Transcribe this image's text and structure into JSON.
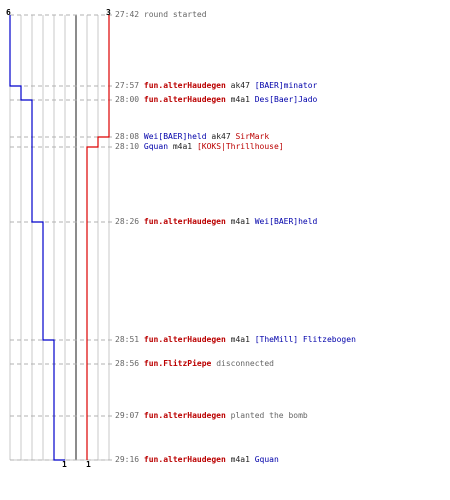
{
  "colors": {
    "blue_team": "#0000cc",
    "red_team": "#dd0000",
    "grid": "#c8c8c8",
    "dash": "#b0b0b0",
    "gray_line": "#666666"
  },
  "counters": {
    "blue_start": "6",
    "red_start": "3",
    "blue_end": "1",
    "red_end": "1"
  },
  "events": [
    {
      "time": "27:42",
      "parts": [
        {
          "text": "round started",
          "cls": "msg"
        }
      ]
    },
    {
      "time": "27:57",
      "parts": [
        {
          "text": "fun.alterHaudegen",
          "cls": "ct"
        },
        {
          "text": "ak47",
          "cls": "wp"
        },
        {
          "text": "[BAER]minator",
          "cls": "tt-name"
        }
      ]
    },
    {
      "time": "28:00",
      "parts": [
        {
          "text": "fun.alterHaudegen",
          "cls": "ct"
        },
        {
          "text": "m4a1",
          "cls": "wp"
        },
        {
          "text": "Des[Baer]Jado",
          "cls": "tt-name"
        }
      ]
    },
    {
      "time": "28:08",
      "parts": [
        {
          "text": "Wei[BAER]held",
          "cls": "tt-name"
        },
        {
          "text": "ak47",
          "cls": "wp"
        },
        {
          "text": "SirMark",
          "cls": "ct-name"
        }
      ]
    },
    {
      "time": "28:10",
      "parts": [
        {
          "text": "Gquan",
          "cls": "tt-name"
        },
        {
          "text": "m4a1",
          "cls": "wp"
        },
        {
          "text": "[KOKS|Thrillhouse]",
          "cls": "ct-name"
        }
      ]
    },
    {
      "time": "28:26",
      "parts": [
        {
          "text": "fun.alterHaudegen",
          "cls": "ct"
        },
        {
          "text": "m4a1",
          "cls": "wp"
        },
        {
          "text": "Wei[BAER]held",
          "cls": "tt-name"
        }
      ]
    },
    {
      "time": "28:51",
      "parts": [
        {
          "text": "fun.alterHaudegen",
          "cls": "ct"
        },
        {
          "text": "m4a1",
          "cls": "wp"
        },
        {
          "text": "[TheMill] Flitzebogen",
          "cls": "tt-name"
        }
      ]
    },
    {
      "time": "28:56",
      "parts": [
        {
          "text": "fun.FlitzPiepe",
          "cls": "ct"
        },
        {
          "text": "disconnected",
          "cls": "msg"
        }
      ]
    },
    {
      "time": "29:07",
      "parts": [
        {
          "text": "fun.alterHaudegen",
          "cls": "ct"
        },
        {
          "text": "planted the bomb",
          "cls": "msg"
        }
      ]
    },
    {
      "time": "29:16",
      "parts": [
        {
          "text": "fun.alterHaudegen",
          "cls": "ct"
        },
        {
          "text": "m4a1",
          "cls": "wp"
        },
        {
          "text": "Gquan",
          "cls": "tt-name"
        }
      ]
    }
  ]
}
